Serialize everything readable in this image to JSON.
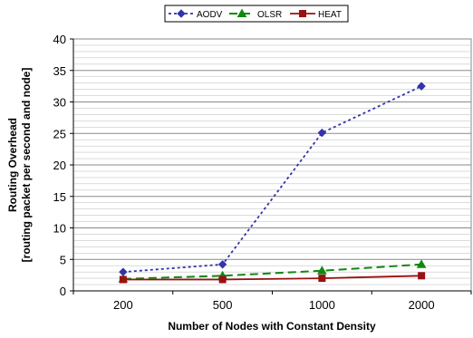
{
  "chart_data": {
    "type": "line",
    "categories": [
      "200",
      "500",
      "1000",
      "2000"
    ],
    "series": [
      {
        "name": "AODV",
        "values": [
          3.0,
          4.2,
          25.1,
          32.5
        ],
        "color": "#3333aa",
        "marker": "diamond",
        "dash": "dotted"
      },
      {
        "name": "OLSR",
        "values": [
          1.9,
          2.4,
          3.2,
          4.2
        ],
        "color": "#118811",
        "marker": "triangle",
        "dash": "dashed"
      },
      {
        "name": "HEAT",
        "values": [
          1.8,
          1.8,
          2.0,
          2.4
        ],
        "color": "#991111",
        "marker": "square",
        "dash": "solid"
      }
    ],
    "title": "",
    "xlabel": "Number of Nodes with Constant Density",
    "ylabel_lines": [
      "Routing Overhead",
      "[routing packet per second and node]"
    ],
    "ylim": [
      0,
      40
    ],
    "yticks": [
      "0",
      "5",
      "10",
      "15",
      "20",
      "25",
      "30",
      "35",
      "40"
    ],
    "grid": true,
    "legend_position": "top"
  }
}
